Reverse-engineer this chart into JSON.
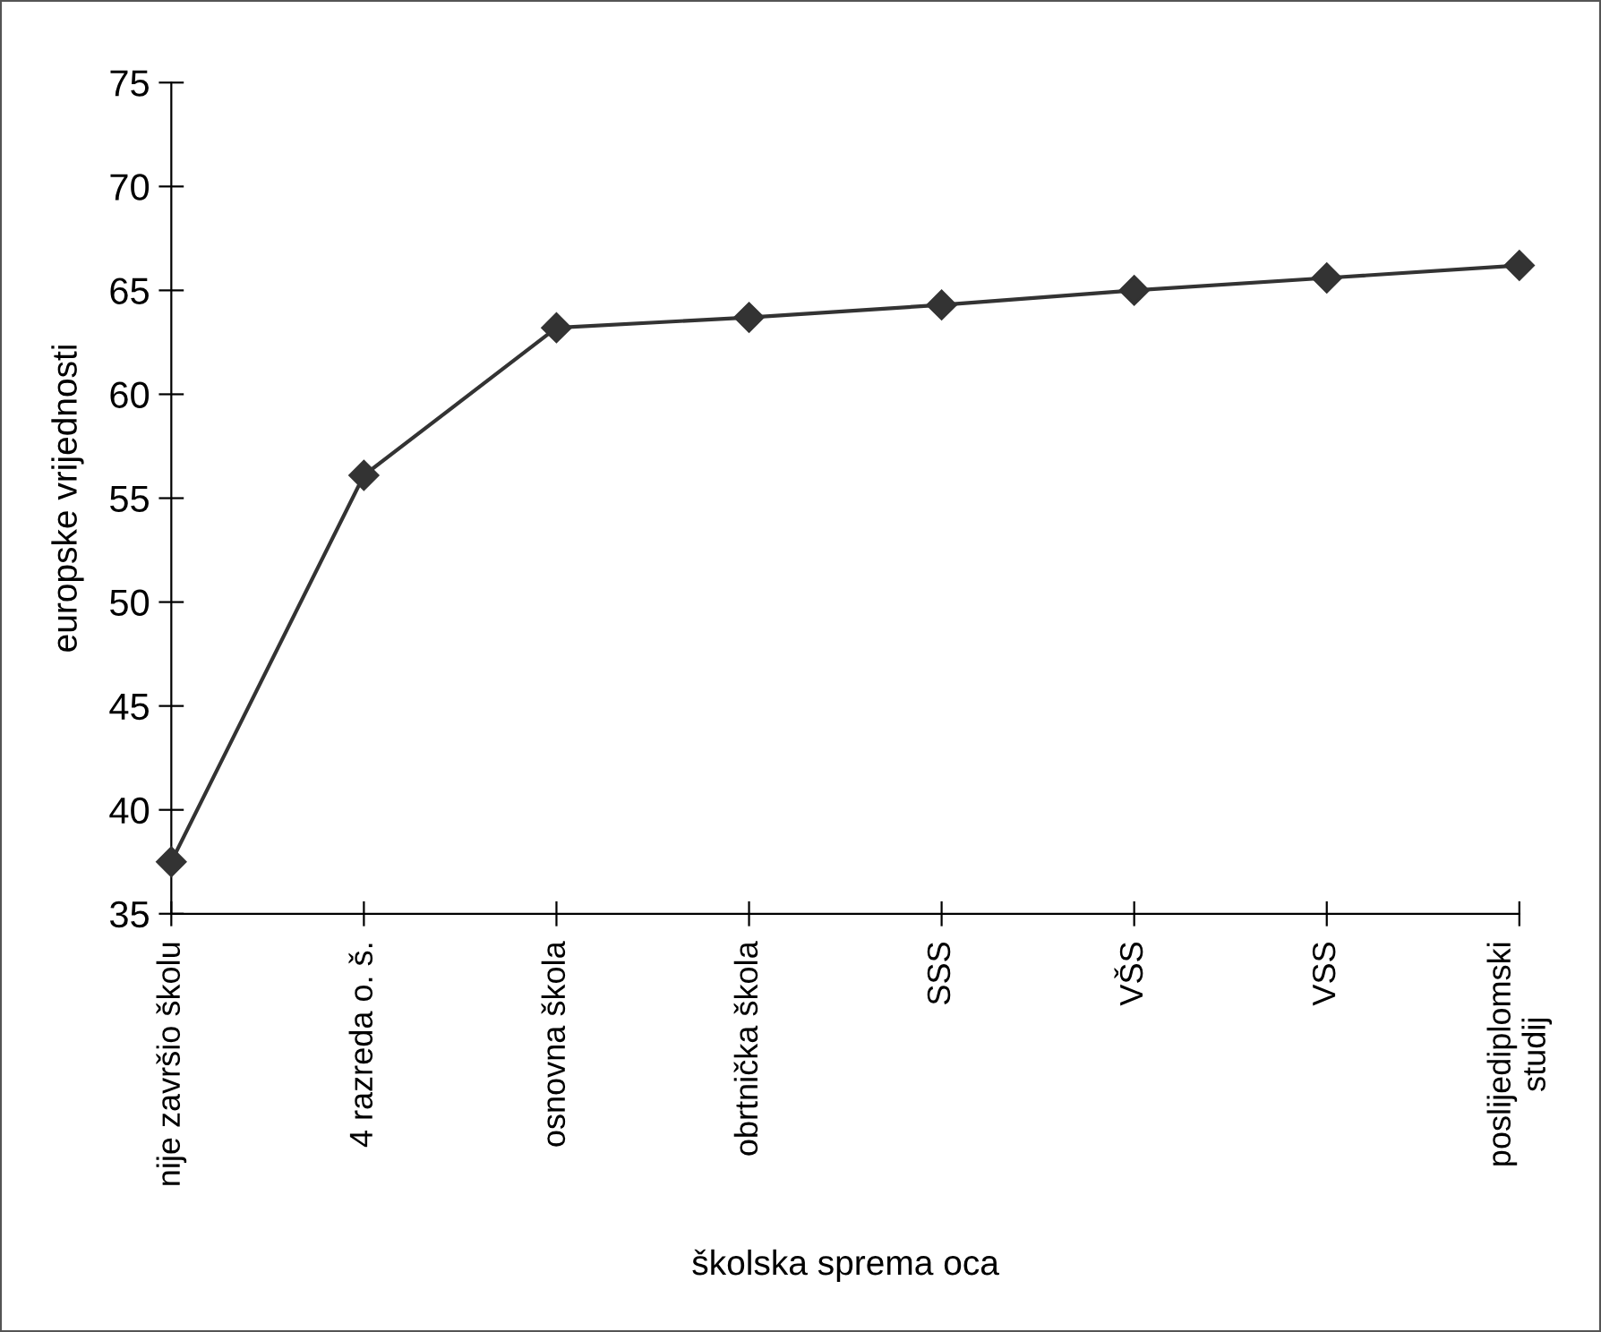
{
  "chart_data": {
    "type": "line",
    "xlabel": "školska sprema oca",
    "ylabel": "europske vrijednosti",
    "categories": [
      "nije završio školu",
      "4 razreda o. š.",
      "osnovna škola",
      "obrtnička škola",
      "SSS",
      "VŠS",
      "VSS",
      "poslijediplomski\nstudij"
    ],
    "series": [
      {
        "color": "#333333",
        "values": [
          37.5,
          56.1,
          63.2,
          63.7,
          64.3,
          65.0,
          65.6,
          66.2
        ]
      }
    ],
    "ylim": [
      35,
      75
    ],
    "yticks": [
      35,
      40,
      45,
      50,
      55,
      60,
      65,
      70,
      75
    ],
    "marker": "diamond",
    "line_style": "solid",
    "grid": false,
    "legend": false
  }
}
